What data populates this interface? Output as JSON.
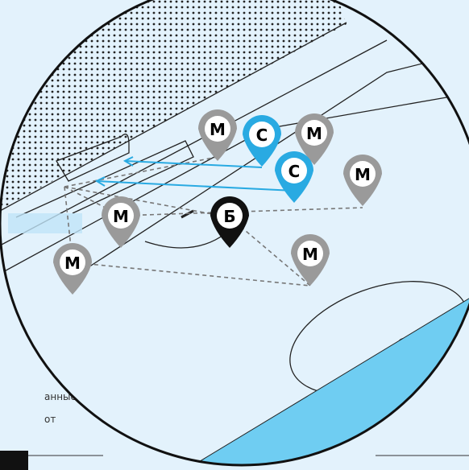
{
  "markers": [
    {
      "label": "М",
      "color": "#9a9a9a"
    },
    {
      "label": "С",
      "color": "#29aae2"
    },
    {
      "label": "М",
      "color": "#9a9a9a"
    },
    {
      "label": "С",
      "color": "#29aae2"
    },
    {
      "label": "М",
      "color": "#9a9a9a"
    },
    {
      "label": "М",
      "color": "#9a9a9a"
    },
    {
      "label": "Б",
      "color": "#111111"
    },
    {
      "label": "М",
      "color": "#9a9a9a"
    },
    {
      "label": "М",
      "color": "#9a9a9a"
    }
  ],
  "caption": [
    "анные",
    "от"
  ]
}
